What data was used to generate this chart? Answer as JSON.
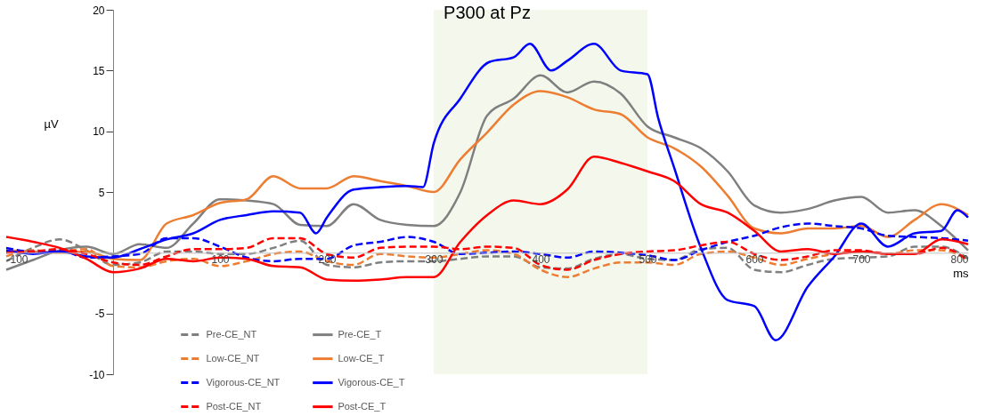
{
  "chart_data": {
    "type": "line",
    "title": "P300 at Pz",
    "xlabel": "ms",
    "ylabel": "µV",
    "x": [
      -100,
      -75,
      -50,
      -25,
      0,
      25,
      50,
      75,
      100,
      125,
      150,
      175,
      200,
      225,
      250,
      275,
      300,
      325,
      350,
      375,
      400,
      425,
      450,
      475,
      500,
      525,
      550,
      575,
      600,
      625,
      650,
      675,
      700,
      725,
      750,
      775,
      800
    ],
    "series": [
      {
        "name": "Pre-CE_NT",
        "color": "#7f7f7f",
        "line_style": "dashed",
        "values": [
          -0.7,
          0.4,
          1.1,
          0.2,
          -1.0,
          -0.8,
          0.1,
          0.1,
          -0.1,
          -0.1,
          0.4,
          1.0,
          -1.0,
          -1.2,
          -0.8,
          -0.7,
          -0.7,
          -0.5,
          -0.3,
          -0.3,
          -1.2,
          -1.3,
          -0.5,
          -0.1,
          -0.5,
          -0.6,
          0.3,
          0.4,
          -1.4,
          -1.6,
          -1.0,
          -0.5,
          -0.4,
          -0.3,
          0.5,
          0.5,
          -0.5
        ]
      },
      {
        "name": "Pre-CE_T",
        "color": "#7f7f7f",
        "line_style": "solid",
        "values": [
          -1.4,
          -0.6,
          0.2,
          0.5,
          -0.1,
          0.7,
          0.4,
          2.4,
          4.4,
          4.3,
          4.0,
          2.3,
          2.2,
          4.0,
          2.7,
          2.3,
          2.2,
          5.0,
          11.3,
          12.7,
          14.6,
          13.2,
          14.1,
          13.1,
          10.4,
          9.5,
          8.6,
          6.7,
          3.9,
          3.3,
          3.6,
          4.3,
          4.6,
          3.3,
          3.5,
          2.2,
          0.2
        ]
      },
      {
        "name": "Low-CE_NT",
        "color": "#ed7d31",
        "line_style": "dashed",
        "values": [
          -0.3,
          0.2,
          0.1,
          0.3,
          -1.1,
          -1.2,
          -0.7,
          -0.5,
          -1.1,
          -0.7,
          -0.1,
          0.1,
          -0.7,
          -1.0,
          -0.1,
          -0.3,
          -0.4,
          -0.1,
          0.2,
          -0.1,
          -1.4,
          -2.0,
          -1.3,
          -0.8,
          -0.8,
          -1.0,
          -0.1,
          0.1,
          -0.4,
          -1.0,
          -0.5,
          -0.1,
          0.1,
          -0.1,
          0.2,
          0.2,
          -0.6
        ]
      },
      {
        "name": "Low-CE_T",
        "color": "#ed7d31",
        "line_style": "solid",
        "values": [
          0.2,
          0.1,
          0,
          0.1,
          -0.5,
          -0.6,
          2.4,
          3.1,
          4.1,
          4.4,
          6.3,
          5.3,
          5.3,
          6.3,
          5.9,
          5.5,
          5.0,
          7.7,
          9.9,
          12.2,
          13.3,
          12.8,
          11.8,
          11.4,
          9.5,
          8.6,
          7.1,
          4.7,
          2.0,
          1.6,
          2.0,
          2.0,
          2.2,
          1.3,
          2.7,
          4.0,
          3.1
        ]
      },
      {
        "name": "Vigorous-CE_NT",
        "color": "#0000ff",
        "line_style": "dashed",
        "values": [
          0.4,
          0.1,
          0.2,
          -0.4,
          -0.3,
          -0.1,
          1.2,
          1.2,
          0.5,
          -0.4,
          -0.7,
          -0.5,
          -0.5,
          0.6,
          0.9,
          1.3,
          0.9,
          -0.1,
          0,
          0.1,
          -0.1,
          -0.4,
          0.1,
          0,
          -0.2,
          -0.6,
          0.2,
          0.9,
          1.4,
          2.1,
          2.4,
          2.2,
          2.0,
          1.4,
          1.3,
          1.2,
          1.0
        ]
      },
      {
        "name": "Vigorous-CE_T",
        "color": "#0000ff",
        "line_style": "solid",
        "x": [
          -100,
          -75,
          -50,
          -25,
          0,
          25,
          50,
          75,
          100,
          125,
          150,
          175,
          190,
          200,
          225,
          250,
          275,
          290,
          300,
          325,
          352,
          375,
          390,
          410,
          425,
          450,
          475,
          500,
          510,
          525,
          550,
          575,
          600,
          620,
          650,
          675,
          700,
          725,
          750,
          775,
          790,
          800
        ],
        "values": [
          0.2,
          -0.1,
          0.1,
          -0.3,
          -0.4,
          0.3,
          1.1,
          1.6,
          2.7,
          3.1,
          3.4,
          3.3,
          1.6,
          2.9,
          5.2,
          5.4,
          5.5,
          5.4,
          9.0,
          12.7,
          15.7,
          16.1,
          17.2,
          15.0,
          15.8,
          17.2,
          15.0,
          14.7,
          11.1,
          7.0,
          0.4,
          -3.9,
          -4.4,
          -7.2,
          -2.8,
          -0.3,
          2.4,
          0.5,
          1.6,
          1.8,
          3.5,
          2.9
        ]
      },
      {
        "name": "Post-CE_NT",
        "color": "#ff0000",
        "line_style": "dashed",
        "values": [
          0,
          0.1,
          0.3,
          -0.1,
          -0.8,
          -1.0,
          -0.3,
          0.3,
          0.3,
          0.4,
          1.2,
          1.2,
          -0.1,
          -0.4,
          0.4,
          0.5,
          0.5,
          0.3,
          0.5,
          0.4,
          -1.0,
          -1.4,
          -0.6,
          -0.1,
          0.1,
          0.2,
          0.6,
          0.9,
          -0.1,
          -0.6,
          -0.3,
          0.2,
          0.2,
          -0.1,
          -0.1,
          0.4,
          -0.6
        ]
      },
      {
        "name": "Post-CE_T",
        "color": "#ff0000",
        "line_style": "solid",
        "values": [
          1.3,
          0.9,
          0.4,
          -0.5,
          -1.6,
          -1.3,
          -0.5,
          -0.7,
          -0.4,
          -0.5,
          -1.1,
          -1.2,
          -2.2,
          -2.3,
          -2.2,
          -2.0,
          -2.0,
          0.9,
          3.1,
          4.3,
          4.0,
          5.2,
          7.9,
          7.4,
          6.7,
          5.9,
          4.0,
          3.3,
          1.8,
          0.1,
          0.3,
          -0.1,
          0.1,
          -0.1,
          -0.1,
          1.1,
          0.7
        ]
      }
    ],
    "xlim": [
      -100,
      800
    ],
    "xticks": [
      -100,
      100,
      200,
      300,
      400,
      500,
      600,
      700,
      800
    ],
    "ylim": [
      -10,
      20
    ],
    "yticks": [
      -10,
      -5,
      5,
      10,
      15,
      20
    ],
    "bands": [
      {
        "axis": "x",
        "from": 300,
        "to": 500,
        "color": "#f3f7ec"
      }
    ],
    "grid": false,
    "legend": "bottom left",
    "marker": "none"
  }
}
